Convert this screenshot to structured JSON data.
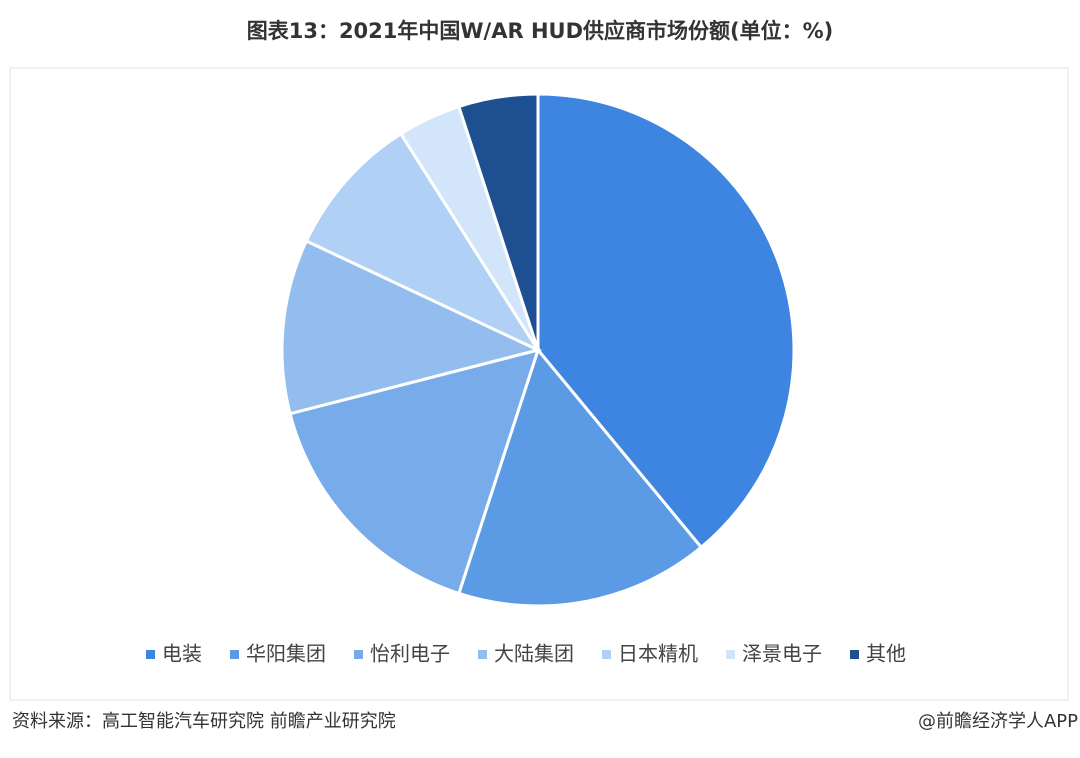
{
  "chart_data": {
    "type": "pie",
    "title": "图表13：2021年中国W/AR HUD供应商市场份额(单位：%)",
    "categories": [
      "电装",
      "华阳集团",
      "怡利电子",
      "大陆集团",
      "日本精机",
      "泽景电子",
      "其他"
    ],
    "values": [
      39,
      16,
      16,
      11,
      9,
      4,
      5
    ],
    "colors": [
      "#3d85e0",
      "#5b9be6",
      "#78abea",
      "#93bdef",
      "#b0d0f5",
      "#d3e5fa",
      "#1d4f91"
    ],
    "legend": "bottom"
  },
  "footer": {
    "source": "资料来源：高工智能汽车研究院 前瞻产业研究院",
    "brand": "@前瞻经济学人APP"
  }
}
